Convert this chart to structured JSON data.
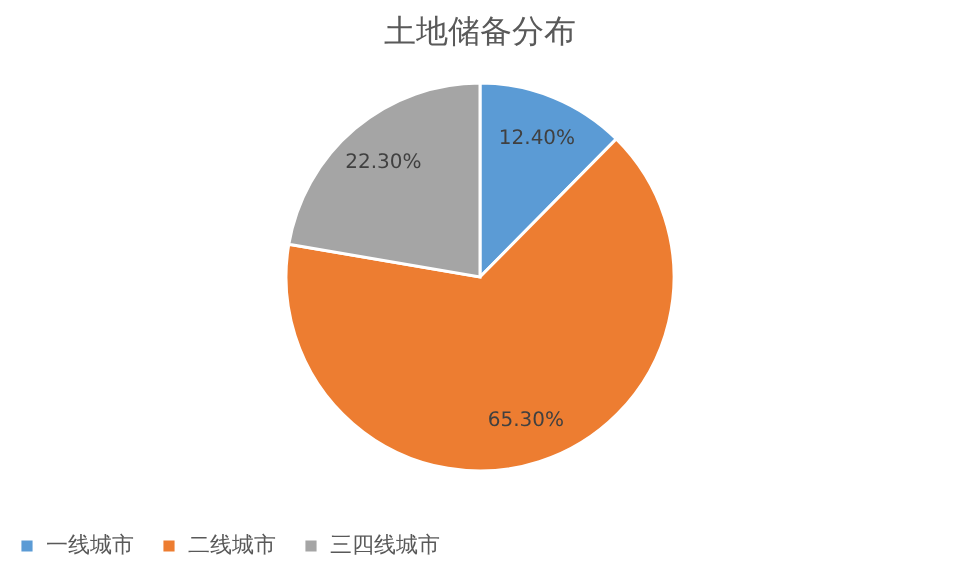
{
  "chart_data": {
    "type": "pie",
    "title": "土地储备分布",
    "categories": [
      "一线城市",
      "二线城市",
      "三四线城市"
    ],
    "values": [
      12.4,
      65.3,
      22.3
    ],
    "value_labels": [
      "12.40%",
      "65.30%",
      "22.30%"
    ],
    "colors": [
      "#5b9bd5",
      "#ed7d31",
      "#a5a5a5"
    ],
    "legend": "bottom"
  }
}
